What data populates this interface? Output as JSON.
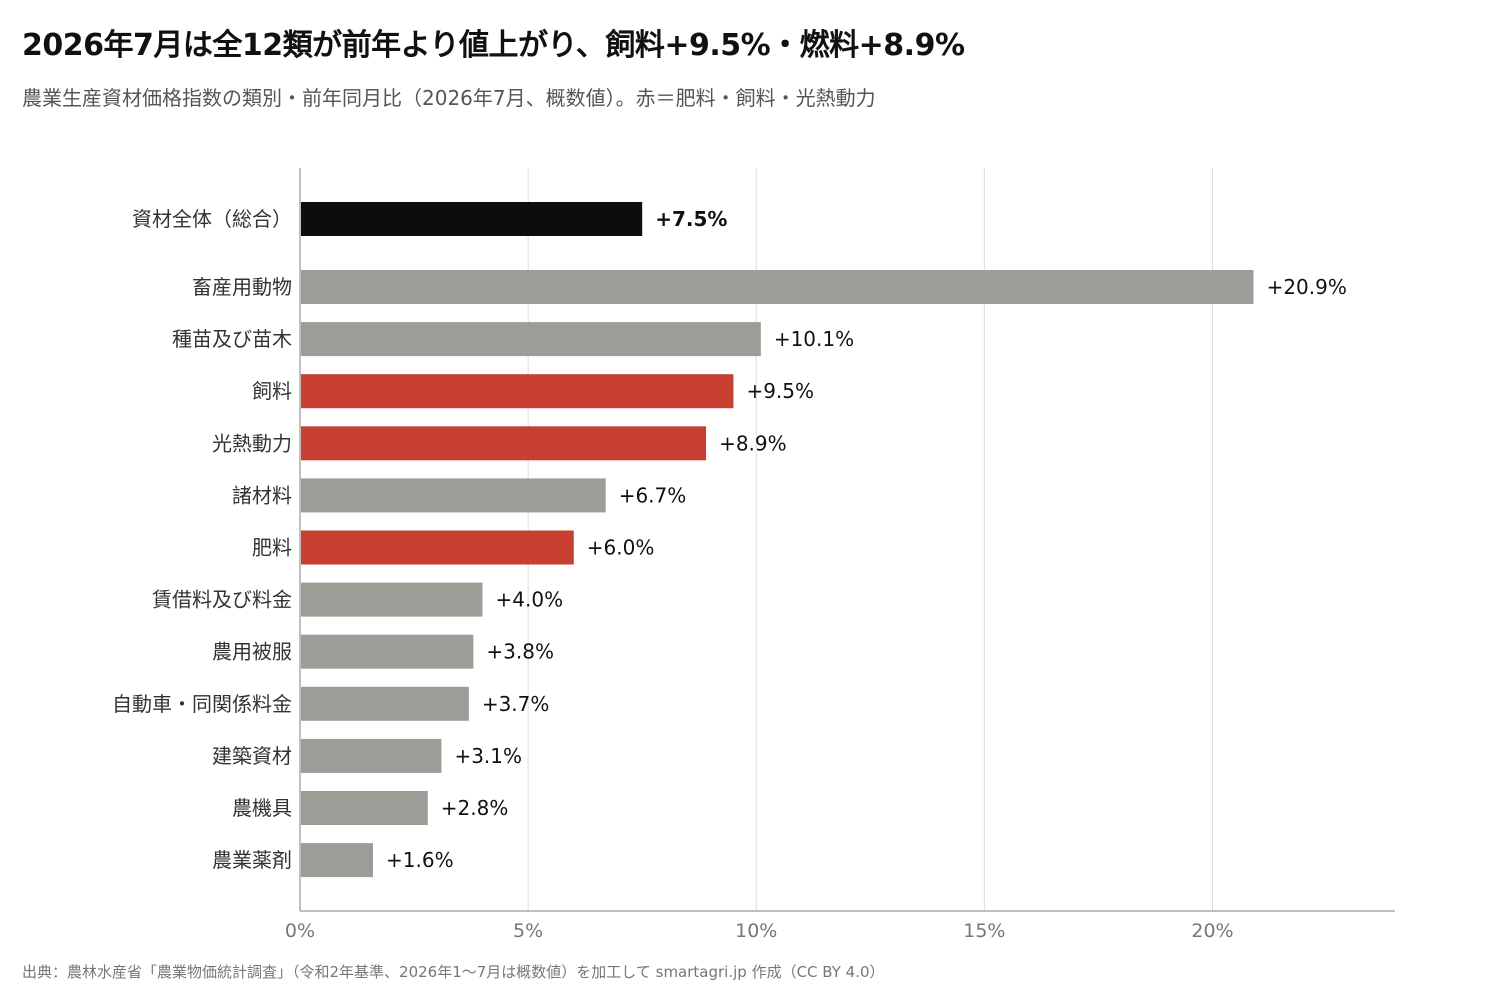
{
  "header": {
    "title": "2026年7月は全12類が前年より値上がり、飼料+9.5%・燃料+8.9%",
    "subtitle": "農業生産資材価格指数の類別・前年同月比（2026年7月、概数値）。赤＝肥料・飼料・光熱動力"
  },
  "footer": {
    "source": "出典：農林水産省「農業物価統計調査」（令和2年基準、2026年1〜7月は概数値）を加工して smartagri.jp 作成（CC BY 4.0）"
  },
  "chart_data": {
    "type": "bar",
    "orientation": "horizontal",
    "title": "2026年7月は全12類が前年より値上がり、飼料+9.5%・燃料+8.9%",
    "subtitle": "農業生産資材価格指数の類別・前年同月比（2026年7月、概数値）。赤＝肥料・飼料・光熱動力",
    "xlim": [
      0,
      24
    ],
    "x_ticks": [
      0,
      5,
      10,
      15,
      20
    ],
    "x_tick_labels": [
      "0%",
      "5%",
      "10%",
      "15%",
      "20%"
    ],
    "grid": "vertical",
    "colors": {
      "total": "#0d0d0d",
      "highlight": "#c63f30",
      "default": "#9d9c97"
    },
    "categories": [
      "資材全体（総合）",
      "畜産用動物",
      "種苗及び苗木",
      "飼料",
      "光熱動力",
      "諸材料",
      "肥料",
      "賃借料及び料金",
      "農用被服",
      "自動車・同関係料金",
      "建築資材",
      "農機具",
      "農業薬剤"
    ],
    "values": [
      7.5,
      20.9,
      10.1,
      9.5,
      8.9,
      6.7,
      6.0,
      4.0,
      3.8,
      3.7,
      3.1,
      2.8,
      1.6
    ],
    "value_labels": [
      "+7.5%",
      "+20.9%",
      "+10.1%",
      "+9.5%",
      "+8.9%",
      "+6.7%",
      "+6.0%",
      "+4.0%",
      "+3.8%",
      "+3.7%",
      "+3.1%",
      "+2.8%",
      "+1.6%"
    ],
    "groups": [
      "total",
      "default",
      "default",
      "highlight",
      "highlight",
      "default",
      "highlight",
      "default",
      "default",
      "default",
      "default",
      "default",
      "default"
    ]
  }
}
